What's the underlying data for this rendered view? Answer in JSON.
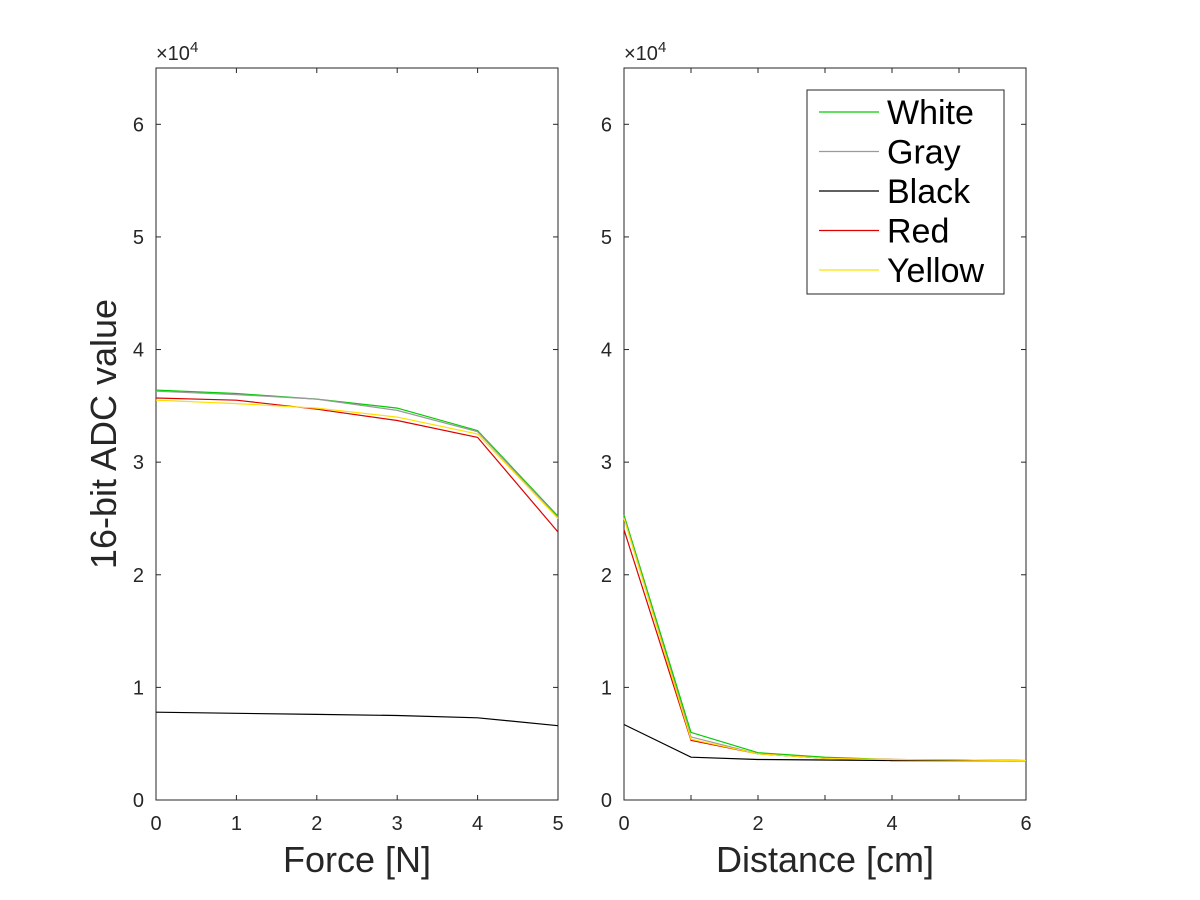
{
  "chart_data": [
    {
      "type": "line",
      "xlabel": "Force [N]",
      "ylabel": "16-bit ADC value",
      "y_exponent_label": "×10",
      "y_exponent_power": "4",
      "xlim": [
        0,
        5
      ],
      "ylim": [
        0,
        65000
      ],
      "x_ticks": [
        0,
        1,
        2,
        3,
        4,
        5
      ],
      "x_tick_labels": [
        "0",
        "1",
        "2",
        "3",
        "4",
        "5"
      ],
      "y_ticks": [
        0,
        10000,
        20000,
        30000,
        40000,
        50000,
        60000
      ],
      "y_tick_labels": [
        "0",
        "1",
        "2",
        "3",
        "4",
        "5",
        "6"
      ],
      "grid": false,
      "legend": false,
      "x": [
        0,
        1,
        2,
        3,
        4,
        5
      ],
      "series": [
        {
          "name": "White",
          "color": "#00cc00",
          "values": [
            36400,
            36100,
            35600,
            34800,
            32800,
            25200
          ]
        },
        {
          "name": "Gray",
          "color": "#9a9a9a",
          "values": [
            36300,
            36000,
            35600,
            34600,
            32700,
            25100
          ]
        },
        {
          "name": "Black",
          "color": "#000000",
          "values": [
            7800,
            7700,
            7600,
            7500,
            7300,
            6600
          ]
        },
        {
          "name": "Red",
          "color": "#dd0000",
          "values": [
            35700,
            35500,
            34700,
            33700,
            32200,
            23800
          ]
        },
        {
          "name": "Yellow",
          "color": "#ffe000",
          "values": [
            35500,
            35200,
            34800,
            34000,
            32500,
            25000
          ]
        }
      ]
    },
    {
      "type": "line",
      "xlabel": "Distance [cm]",
      "ylabel": "",
      "y_exponent_label": "×10",
      "y_exponent_power": "4",
      "xlim": [
        0,
        6
      ],
      "ylim": [
        0,
        65000
      ],
      "x_ticks": [
        0,
        2,
        4,
        6
      ],
      "x_tick_labels": [
        "0",
        "2",
        "4",
        "6"
      ],
      "x_minor_ticks": [
        1,
        3,
        5
      ],
      "y_ticks": [
        0,
        10000,
        20000,
        30000,
        40000,
        50000,
        60000
      ],
      "y_tick_labels": [
        "0",
        "1",
        "2",
        "3",
        "4",
        "5",
        "6"
      ],
      "grid": false,
      "legend": true,
      "legend_position": "top-right",
      "x": [
        0,
        1,
        2,
        3,
        4,
        5,
        6
      ],
      "series": [
        {
          "name": "White",
          "color": "#00cc00",
          "values": [
            25300,
            6000,
            4200,
            3800,
            3600,
            3550,
            3500
          ]
        },
        {
          "name": "Gray",
          "color": "#9a9a9a",
          "values": [
            25100,
            5600,
            4100,
            3700,
            3600,
            3550,
            3500
          ]
        },
        {
          "name": "Black",
          "color": "#000000",
          "values": [
            6700,
            3800,
            3600,
            3550,
            3500,
            3500,
            3500
          ]
        },
        {
          "name": "Red",
          "color": "#dd0000",
          "values": [
            24000,
            5300,
            4100,
            3700,
            3600,
            3550,
            3500
          ]
        },
        {
          "name": "Yellow",
          "color": "#ffe000",
          "values": [
            25000,
            5400,
            4100,
            3700,
            3600,
            3550,
            3500
          ]
        }
      ]
    }
  ]
}
